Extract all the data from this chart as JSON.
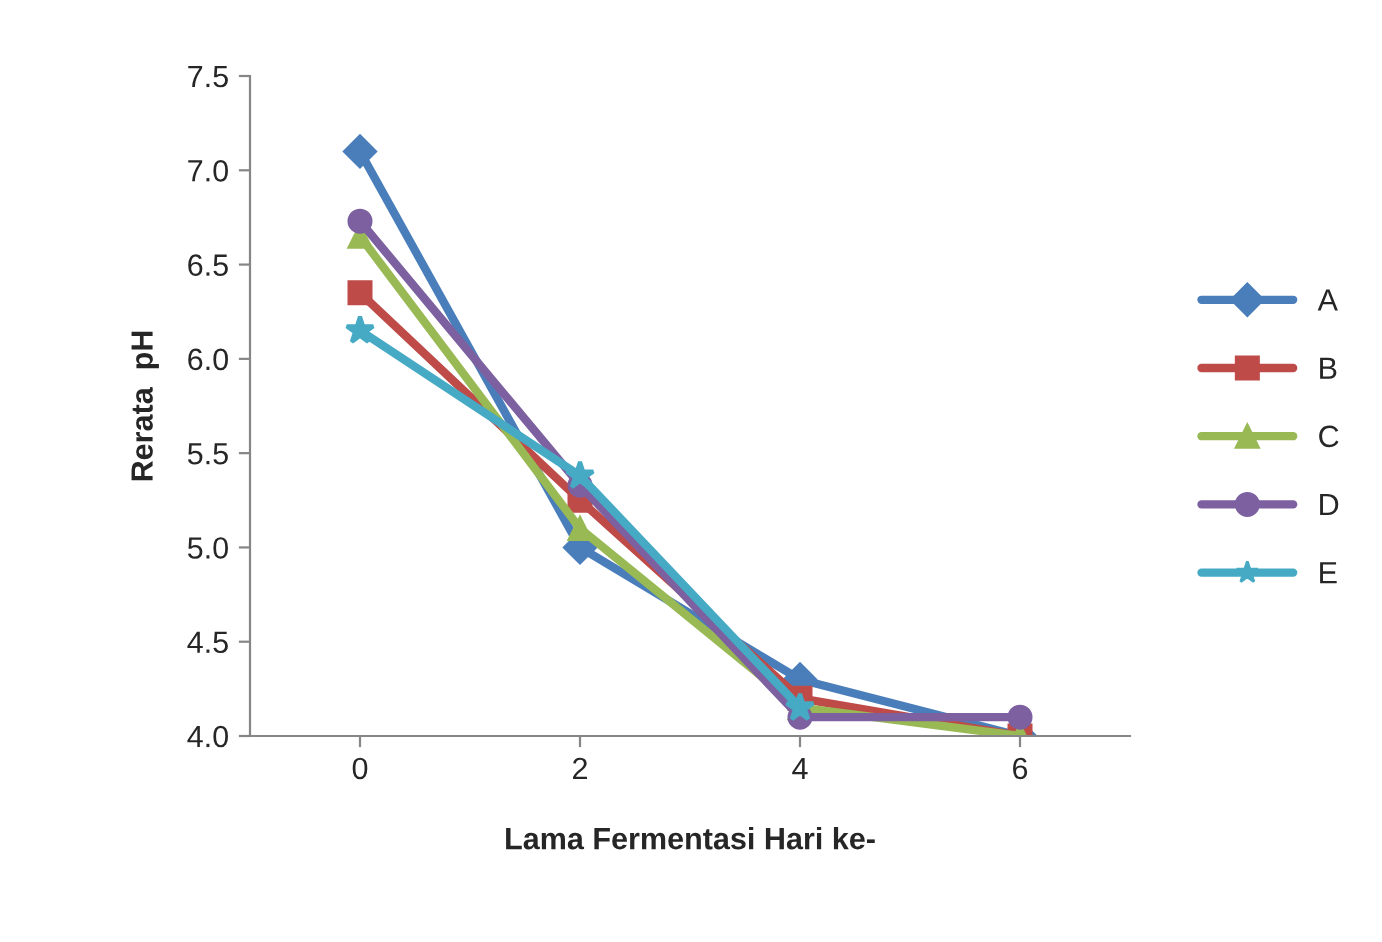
{
  "chart_data": {
    "type": "line",
    "xlabel": "Lama Fermentasi Hari ke-",
    "ylabel": "Rerata  pH",
    "categories": [
      "0",
      "2",
      "4",
      "6"
    ],
    "ylim": [
      4.0,
      7.5
    ],
    "yticks": [
      {
        "value": 4.0,
        "label": "4.0"
      },
      {
        "value": 4.5,
        "label": "4.5"
      },
      {
        "value": 5.0,
        "label": "5.0"
      },
      {
        "value": 5.5,
        "label": "5.5"
      },
      {
        "value": 6.0,
        "label": "6.0"
      },
      {
        "value": 6.5,
        "label": "6.5"
      },
      {
        "value": 7.0,
        "label": "7.0"
      },
      {
        "value": 7.5,
        "label": "7.5"
      }
    ],
    "grid": false,
    "legend": "right",
    "series": [
      {
        "name": "A",
        "color": "#4a7ebb",
        "marker": "diamond",
        "values": [
          7.1,
          5.0,
          4.3,
          4.0
        ]
      },
      {
        "name": "B",
        "color": "#be4b48",
        "marker": "square",
        "values": [
          6.35,
          5.25,
          4.2,
          4.0
        ]
      },
      {
        "name": "C",
        "color": "#98b954",
        "marker": "triangle",
        "values": [
          6.65,
          5.1,
          4.15,
          4.0
        ]
      },
      {
        "name": "D",
        "color": "#7d60a0",
        "marker": "circle",
        "values": [
          6.73,
          5.33,
          4.1,
          4.1
        ]
      },
      {
        "name": "E",
        "color": "#46aac5",
        "marker": "star",
        "values": [
          6.15,
          5.38,
          4.15,
          null
        ]
      }
    ]
  }
}
